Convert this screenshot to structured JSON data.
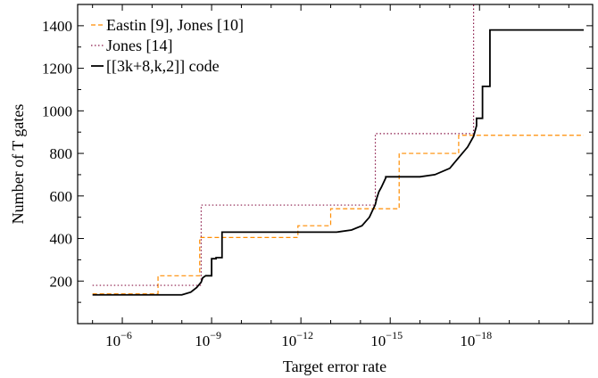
{
  "chart_data": {
    "type": "line",
    "xlabel": "Target error rate",
    "ylabel": "Number of T gates",
    "x_scale": "log",
    "x_reversed": true,
    "xlim_exponent": [
      -4.5,
      -21.8
    ],
    "ylim": [
      0,
      1500
    ],
    "x_ticks": [
      {
        "exp": -6,
        "label": "10",
        "sup": "−6"
      },
      {
        "exp": -9,
        "label": "10",
        "sup": "−9"
      },
      {
        "exp": -12,
        "label": "10",
        "sup": "−12"
      },
      {
        "exp": -15,
        "label": "10",
        "sup": "−15"
      },
      {
        "exp": -18,
        "label": "10",
        "sup": "−18"
      }
    ],
    "y_ticks": [
      200,
      400,
      600,
      800,
      1000,
      1200,
      1400
    ],
    "legend_position": "top-left",
    "series": [
      {
        "name": "Eastin [9], Jones [10]",
        "color": "#ff8c00",
        "style": "dashed",
        "x_exp": [
          -5,
          -7.2,
          -7.2,
          -8.6,
          -8.6,
          -11.9,
          -11.9,
          -13,
          -13,
          -15.3,
          -15.3,
          -17.3,
          -17.3,
          -21.5
        ],
        "y": [
          140,
          140,
          225,
          225,
          405,
          405,
          460,
          460,
          540,
          540,
          800,
          800,
          885,
          885
        ]
      },
      {
        "name": "Jones [14]",
        "color": "#8b1a4a",
        "style": "dotted",
        "x_exp": [
          -5,
          -8.65,
          -8.65,
          -14.5,
          -14.5,
          -17.8,
          -17.8
        ],
        "y": [
          180,
          180,
          557,
          557,
          893,
          893,
          1520
        ]
      },
      {
        "name": "[[3k+8,k,2]] code",
        "color": "#000000",
        "style": "solid",
        "x_exp": [
          -5,
          -8,
          -8.3,
          -8.5,
          -8.65,
          -8.7,
          -8.8,
          -9,
          -9,
          -9.15,
          -9.15,
          -9.35,
          -9.35,
          -13.2,
          -13.7,
          -14.05,
          -14.3,
          -14.5,
          -14.55,
          -14.62,
          -14.7,
          -14.85,
          -14.85,
          -16,
          -16.5,
          -17,
          -17.3,
          -17.6,
          -17.8,
          -17.9,
          -17.9,
          -18.1,
          -18.1,
          -18.35,
          -18.35,
          -21.5
        ],
        "y": [
          135,
          135,
          148,
          170,
          195,
          215,
          225,
          225,
          305,
          305,
          310,
          310,
          430,
          430,
          440,
          460,
          500,
          560,
          590,
          620,
          640,
          685,
          690,
          690,
          700,
          730,
          780,
          830,
          880,
          930,
          965,
          965,
          1115,
          1115,
          1380,
          1380
        ]
      }
    ]
  }
}
